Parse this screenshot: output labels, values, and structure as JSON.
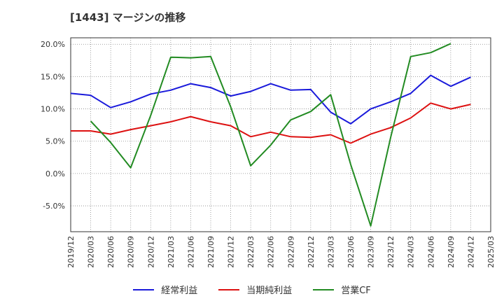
{
  "title": "[1443]  マージンの推移",
  "chart_data": {
    "type": "line",
    "title": "[1443]  マージンの推移",
    "x": [
      "2019/12",
      "2020/03",
      "2020/06",
      "2020/09",
      "2020/12",
      "2021/03",
      "2021/06",
      "2021/09",
      "2021/12",
      "2022/03",
      "2022/06",
      "2022/09",
      "2022/12",
      "2023/03",
      "2023/06",
      "2023/09",
      "2023/12",
      "2024/03",
      "2024/06",
      "2024/09",
      "2024/12",
      "2025/03"
    ],
    "y_ticks": [
      "20.0%",
      "15.0%",
      "10.0%",
      "5.0%",
      "0.0%",
      "-5.0%"
    ],
    "y_tick_values": [
      20,
      15,
      10,
      5,
      0,
      -5
    ],
    "ylim": [
      -9,
      21
    ],
    "grid": true,
    "legend_position": "bottom",
    "series": [
      {
        "name": "経常利益",
        "color": "#1a1adb",
        "values": [
          12.4,
          12.1,
          10.2,
          11.1,
          12.3,
          12.9,
          13.9,
          13.3,
          12.0,
          12.7,
          13.9,
          12.9,
          13.0,
          9.5,
          7.7,
          10.0,
          11.1,
          12.4,
          15.2,
          13.5,
          14.9,
          null
        ]
      },
      {
        "name": "当期純利益",
        "color": "#dd1111",
        "values": [
          6.6,
          6.6,
          6.1,
          6.8,
          7.4,
          8.0,
          8.8,
          8.0,
          7.4,
          5.7,
          6.4,
          5.7,
          5.6,
          6.0,
          4.7,
          6.1,
          7.1,
          8.6,
          10.9,
          10.0,
          10.7,
          null
        ]
      },
      {
        "name": "営業CF",
        "color": "#228b22",
        "values": [
          null,
          8.1,
          4.8,
          0.9,
          9.0,
          18.0,
          17.9,
          18.1,
          10.3,
          1.2,
          4.4,
          8.3,
          9.6,
          12.2,
          1.4,
          -8.1,
          5.6,
          18.1,
          18.7,
          20.1,
          null,
          null
        ]
      }
    ]
  }
}
